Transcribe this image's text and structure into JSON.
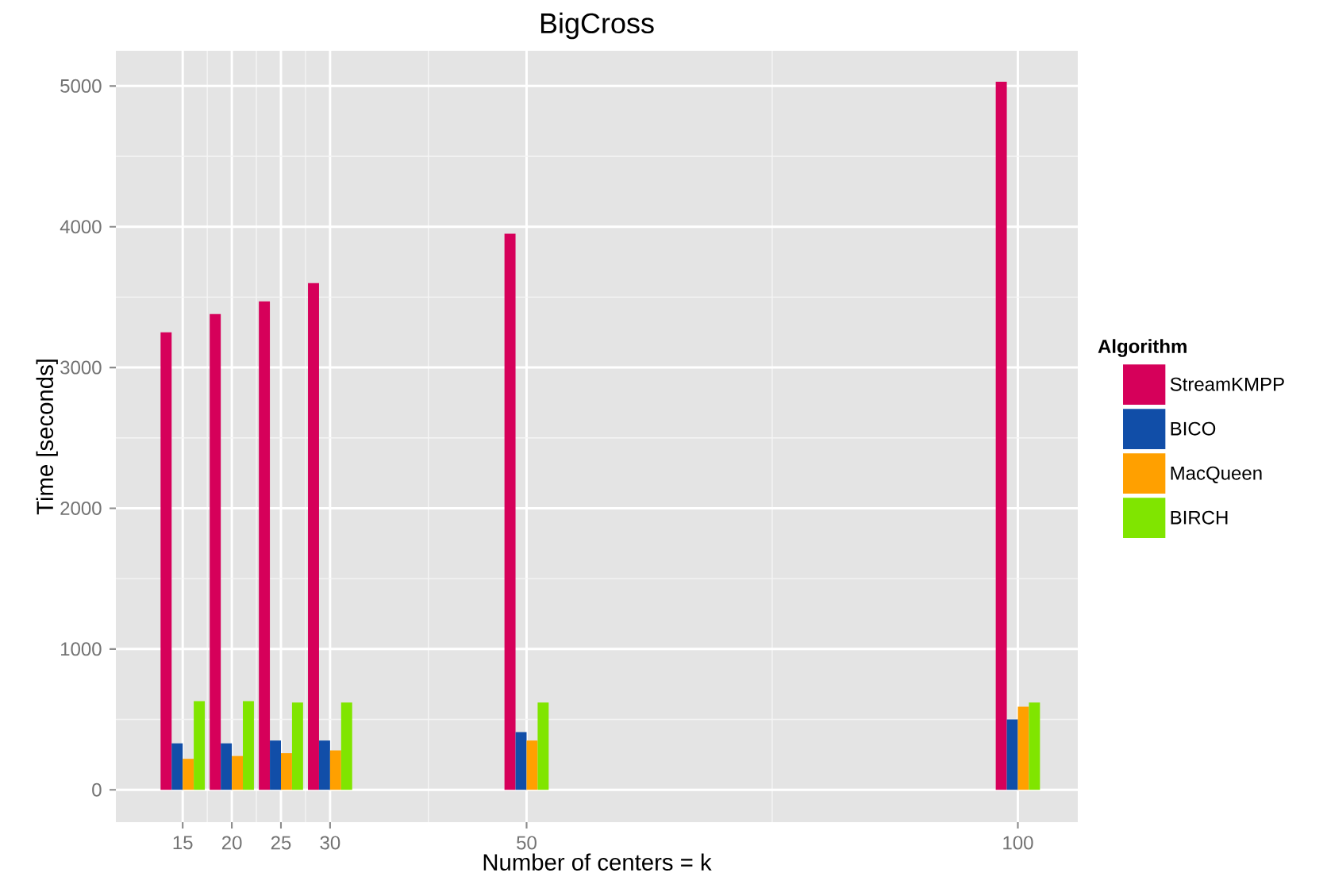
{
  "chart_data": {
    "type": "bar",
    "title": "BigCross",
    "xlabel": "Number of centers = k",
    "ylabel": "Time [seconds]",
    "legend_title": "Algorithm",
    "x": [
      15,
      20,
      25,
      30,
      50,
      100
    ],
    "series": [
      {
        "name": "StreamKMPP",
        "color": "#d6005a",
        "values": [
          3250,
          3380,
          3470,
          3600,
          3950,
          5030
        ]
      },
      {
        "name": "BICO",
        "color": "#114ea8",
        "values": [
          330,
          330,
          350,
          350,
          410,
          500
        ]
      },
      {
        "name": "MacQueen",
        "color": "#ffa000",
        "values": [
          220,
          240,
          260,
          280,
          350,
          590
        ]
      },
      {
        "name": "BIRCH",
        "color": "#80e500",
        "values": [
          630,
          630,
          620,
          620,
          620,
          620
        ]
      }
    ],
    "xlim": [
      8.2,
      106.1
    ],
    "ylim": [
      -230,
      5250
    ],
    "xticks": [
      15,
      20,
      25,
      30,
      50,
      100
    ],
    "yticks": [
      0,
      1000,
      2000,
      3000,
      4000,
      5000
    ],
    "grid": true,
    "legend": "right"
  }
}
